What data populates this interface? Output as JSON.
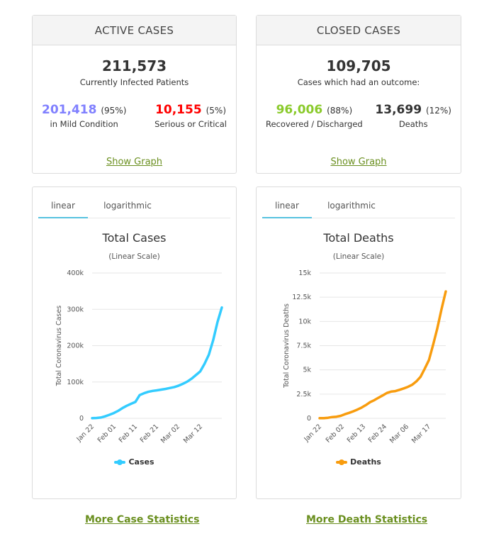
{
  "active": {
    "title": "ACTIVE CASES",
    "total": "211,573",
    "total_label": "Currently Infected Patients",
    "mild_value": "201,418",
    "mild_pct": "(95%)",
    "mild_label": "in Mild Condition",
    "critical_value": "10,155",
    "critical_pct": "(5%)",
    "critical_label": "Serious or Critical",
    "show_graph": "Show Graph"
  },
  "closed": {
    "title": "CLOSED CASES",
    "total": "109,705",
    "total_label": "Cases which had an outcome:",
    "recovered_value": "96,006",
    "recovered_pct": "(88%)",
    "recovered_label": "Recovered / Discharged",
    "deaths_value": "13,699",
    "deaths_pct": "(12%)",
    "deaths_label": "Deaths",
    "show_graph": "Show Graph"
  },
  "colors": {
    "mild": "#8080ff",
    "critical": "#ff0000",
    "recovered": "#8aca2b",
    "cases_line": "#33ccff",
    "deaths_line": "#f89c0e",
    "link": "#6a8f1f"
  },
  "cases_chart": {
    "tabs": [
      "linear",
      "logarithmic"
    ],
    "active_tab": "linear",
    "legend": "Cases",
    "legend_icon": "line-dot-icon"
  },
  "deaths_chart": {
    "tabs": [
      "linear",
      "logarithmic"
    ],
    "active_tab": "linear",
    "legend": "Deaths",
    "legend_icon": "line-dot-icon"
  },
  "links": {
    "more_cases": "More Case Statistics",
    "more_deaths": "More Death Statistics"
  },
  "chart_data": [
    {
      "type": "line",
      "title": "Total Cases",
      "subtitle": "(Linear Scale)",
      "xlabel": "",
      "ylabel": "Total Coronavirus Cases",
      "ylim": [
        0,
        400000
      ],
      "yticks": [
        0,
        100000,
        200000,
        300000,
        400000
      ],
      "ytick_labels": [
        "0",
        "100k",
        "200k",
        "300k",
        "400k"
      ],
      "x_tick_labels": [
        "Jan 22",
        "Feb 01",
        "Feb 11",
        "Feb 21",
        "Mar 02",
        "Mar 12"
      ],
      "grid": true,
      "legend_position": "bottom",
      "series": [
        {
          "name": "Cases",
          "x": [
            "Jan 22",
            "Jan 24",
            "Jan 26",
            "Jan 28",
            "Jan 30",
            "Feb 01",
            "Feb 03",
            "Feb 05",
            "Feb 07",
            "Feb 09",
            "Feb 11",
            "Feb 13",
            "Feb 15",
            "Feb 17",
            "Feb 19",
            "Feb 21",
            "Feb 23",
            "Feb 25",
            "Feb 27",
            "Feb 29",
            "Mar 02",
            "Mar 04",
            "Mar 06",
            "Mar 08",
            "Mar 10",
            "Mar 12",
            "Mar 14",
            "Mar 16",
            "Mar 18",
            "Mar 20",
            "Mar 22"
          ],
          "values": [
            580,
            900,
            2100,
            5500,
            9800,
            14500,
            20500,
            28000,
            34500,
            40000,
            45000,
            64000,
            69000,
            73000,
            75500,
            77000,
            79000,
            81000,
            83500,
            86000,
            90000,
            95000,
            101000,
            109000,
            119000,
            129000,
            150000,
            175000,
            215000,
            265000,
            305000
          ]
        }
      ]
    },
    {
      "type": "line",
      "title": "Total Deaths",
      "subtitle": "(Linear Scale)",
      "xlabel": "",
      "ylabel": "Total Coronavirus Deaths",
      "ylim": [
        0,
        15000
      ],
      "yticks": [
        0,
        2500,
        5000,
        7500,
        10000,
        12500,
        15000
      ],
      "ytick_labels": [
        "0",
        "2.5k",
        "5k",
        "7.5k",
        "10k",
        "12.5k",
        "15k"
      ],
      "x_tick_labels": [
        "Jan 22",
        "Feb 02",
        "Feb 13",
        "Feb 24",
        "Mar 06",
        "Mar 17"
      ],
      "grid": true,
      "legend_position": "bottom",
      "series": [
        {
          "name": "Deaths",
          "x": [
            "Jan 22",
            "Jan 24",
            "Jan 26",
            "Jan 28",
            "Jan 30",
            "Feb 01",
            "Feb 03",
            "Feb 05",
            "Feb 07",
            "Feb 09",
            "Feb 11",
            "Feb 13",
            "Feb 15",
            "Feb 17",
            "Feb 19",
            "Feb 21",
            "Feb 23",
            "Feb 25",
            "Feb 27",
            "Feb 29",
            "Mar 02",
            "Mar 04",
            "Mar 06",
            "Mar 08",
            "Mar 10",
            "Mar 12",
            "Mar 14",
            "Mar 16",
            "Mar 18",
            "Mar 20",
            "Mar 22"
          ],
          "values": [
            17,
            25,
            56,
            131,
            170,
            259,
            427,
            565,
            724,
            908,
            1115,
            1370,
            1670,
            1870,
            2130,
            2360,
            2620,
            2760,
            2810,
            2940,
            3090,
            3250,
            3460,
            3810,
            4290,
            5120,
            6020,
            7600,
            9300,
            11300,
            13100
          ]
        }
      ]
    }
  ]
}
